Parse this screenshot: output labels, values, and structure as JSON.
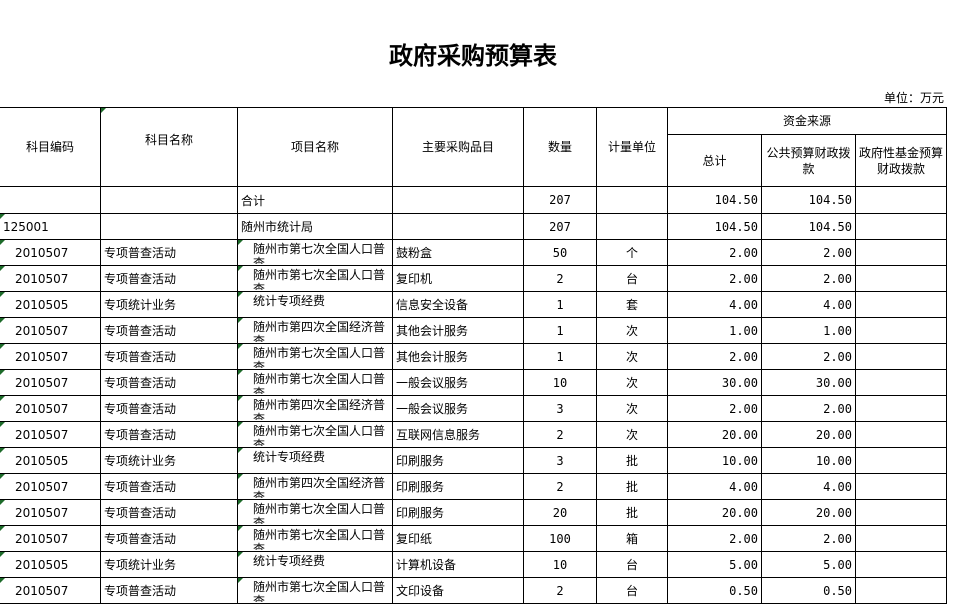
{
  "title": "政府采购预算表",
  "unit": "单位：万元",
  "headers": {
    "code": "科目编码",
    "subject": "科目名称",
    "project": "项目名称",
    "item": "主要采购品目",
    "qty": "数量",
    "measure": "计量单位",
    "funding": "资金来源",
    "total": "总计",
    "public": "公共预算财政拨款",
    "fund": "政府性基金预算财政拨款"
  },
  "rows": [
    {
      "code": "",
      "subject": "",
      "project": "合计",
      "item": "",
      "qty": "207",
      "measure": "",
      "total": "104.50",
      "public": "104.50",
      "fund": ""
    },
    {
      "code": "125001",
      "subject": "",
      "project": "随州市统计局",
      "item": "",
      "qty": "207",
      "measure": "",
      "total": "104.50",
      "public": "104.50",
      "fund": ""
    },
    {
      "code": "2010507",
      "subject": "专项普查活动",
      "project": "随州市第七次全国人口普查",
      "item": "鼓粉盒",
      "qty": "50",
      "measure": "个",
      "total": "2.00",
      "public": "2.00",
      "fund": ""
    },
    {
      "code": "2010507",
      "subject": "专项普查活动",
      "project": "随州市第七次全国人口普查",
      "item": "复印机",
      "qty": "2",
      "measure": "台",
      "total": "2.00",
      "public": "2.00",
      "fund": ""
    },
    {
      "code": "2010505",
      "subject": "专项统计业务",
      "project": "统计专项经费",
      "item": "信息安全设备",
      "qty": "1",
      "measure": "套",
      "total": "4.00",
      "public": "4.00",
      "fund": ""
    },
    {
      "code": "2010507",
      "subject": "专项普查活动",
      "project": "随州市第四次全国经济普查",
      "item": "其他会计服务",
      "qty": "1",
      "measure": "次",
      "total": "1.00",
      "public": "1.00",
      "fund": ""
    },
    {
      "code": "2010507",
      "subject": "专项普查活动",
      "project": "随州市第七次全国人口普查",
      "item": "其他会计服务",
      "qty": "1",
      "measure": "次",
      "total": "2.00",
      "public": "2.00",
      "fund": ""
    },
    {
      "code": "2010507",
      "subject": "专项普查活动",
      "project": "随州市第七次全国人口普查",
      "item": "一般会议服务",
      "qty": "10",
      "measure": "次",
      "total": "30.00",
      "public": "30.00",
      "fund": ""
    },
    {
      "code": "2010507",
      "subject": "专项普查活动",
      "project": "随州市第四次全国经济普查",
      "item": "一般会议服务",
      "qty": "3",
      "measure": "次",
      "total": "2.00",
      "public": "2.00",
      "fund": ""
    },
    {
      "code": "2010507",
      "subject": "专项普查活动",
      "project": "随州市第七次全国人口普查",
      "item": "互联网信息服务",
      "qty": "2",
      "measure": "次",
      "total": "20.00",
      "public": "20.00",
      "fund": ""
    },
    {
      "code": "2010505",
      "subject": "专项统计业务",
      "project": "统计专项经费",
      "item": "印刷服务",
      "qty": "3",
      "measure": "批",
      "total": "10.00",
      "public": "10.00",
      "fund": ""
    },
    {
      "code": "2010507",
      "subject": "专项普查活动",
      "project": "随州市第四次全国经济普查",
      "item": "印刷服务",
      "qty": "2",
      "measure": "批",
      "total": "4.00",
      "public": "4.00",
      "fund": ""
    },
    {
      "code": "2010507",
      "subject": "专项普查活动",
      "project": "随州市第七次全国人口普查",
      "item": "印刷服务",
      "qty": "20",
      "measure": "批",
      "total": "20.00",
      "public": "20.00",
      "fund": ""
    },
    {
      "code": "2010507",
      "subject": "专项普查活动",
      "project": "随州市第七次全国人口普查",
      "item": "复印纸",
      "qty": "100",
      "measure": "箱",
      "total": "2.00",
      "public": "2.00",
      "fund": ""
    },
    {
      "code": "2010505",
      "subject": "专项统计业务",
      "project": "统计专项经费",
      "item": "计算机设备",
      "qty": "10",
      "measure": "台",
      "total": "5.00",
      "public": "5.00",
      "fund": ""
    },
    {
      "code": "2010507",
      "subject": "专项普查活动",
      "project": "随州市第七次全国人口普查",
      "item": "文印设备",
      "qty": "2",
      "measure": "台",
      "total": "0.50",
      "public": "0.50",
      "fund": ""
    }
  ]
}
